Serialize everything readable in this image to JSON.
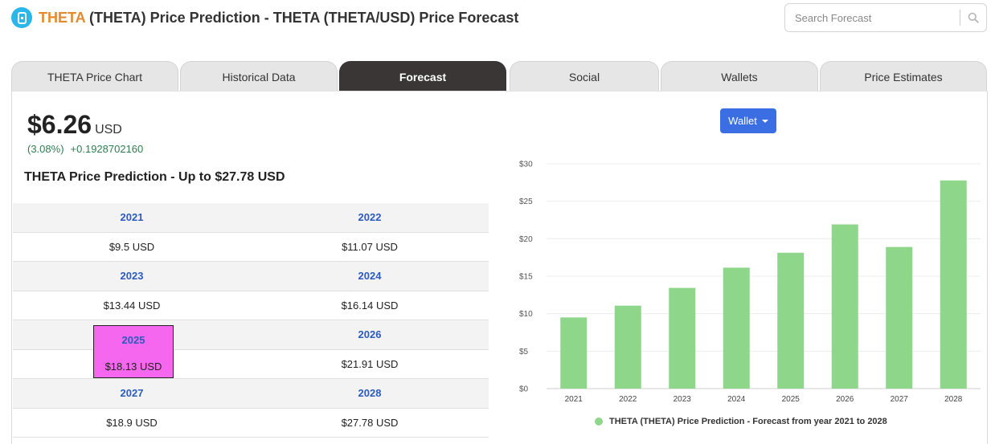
{
  "header": {
    "brand": "THETA",
    "title_rest": " (THETA) Price Prediction - THETA (THETA/USD) Price Forecast",
    "logo_icon": "theta-logo-icon"
  },
  "search": {
    "placeholder": "Search Forecast",
    "icon": "search-icon"
  },
  "tabs": [
    {
      "label": "THETA Price Chart",
      "active": false
    },
    {
      "label": "Historical Data",
      "active": false
    },
    {
      "label": "Forecast",
      "active": true
    },
    {
      "label": "Social",
      "active": false
    },
    {
      "label": "Wallets",
      "active": false
    },
    {
      "label": "Price Estimates",
      "active": false
    }
  ],
  "price": {
    "value": "$6.26",
    "unit": "USD",
    "change_percent": "(3.08%)",
    "change_value": "+0.1928702160"
  },
  "prediction_title": "THETA Price Prediction - Up to $27.78 USD",
  "table": {
    "rows": [
      {
        "type": "year",
        "cells": [
          "2021",
          "2022"
        ]
      },
      {
        "type": "value",
        "cells": [
          "$9.5 USD",
          "$11.07 USD"
        ]
      },
      {
        "type": "year",
        "cells": [
          "2023",
          "2024"
        ]
      },
      {
        "type": "value",
        "cells": [
          "$13.44 USD",
          "$16.14 USD"
        ]
      },
      {
        "type": "year",
        "cells": [
          "2025",
          "2026"
        ]
      },
      {
        "type": "value",
        "cells": [
          "$18.13 USD",
          "$21.91 USD"
        ]
      },
      {
        "type": "year",
        "cells": [
          "2027",
          "2028"
        ]
      },
      {
        "type": "value",
        "cells": [
          "$18.9 USD",
          "$27.78 USD"
        ]
      }
    ]
  },
  "wallet_button": {
    "label": "Wallet"
  },
  "colors": {
    "brand": "#e38a2c",
    "active_tab": "#3a3635",
    "year_text": "#2c5bbd",
    "change_text": "#2e7d4f",
    "button": "#3b6ee3",
    "bar": "#8ed68a",
    "highlight": "#f567ef"
  },
  "chart_data": {
    "type": "bar",
    "categories": [
      "2021",
      "2022",
      "2023",
      "2024",
      "2025",
      "2026",
      "2027",
      "2028"
    ],
    "values": [
      9.5,
      11.07,
      13.44,
      16.14,
      18.13,
      21.91,
      18.9,
      27.78
    ],
    "ylim": [
      0,
      30
    ],
    "yticks": [
      0,
      5,
      10,
      15,
      20,
      25,
      30
    ],
    "ytick_labels": [
      "$0",
      "$5",
      "$10",
      "$15",
      "$20",
      "$25",
      "$30"
    ],
    "grid": true,
    "legend": "bottom",
    "series": [
      {
        "name": "THETA (THETA) Price Prediction - Forecast from year 2021 to 2028",
        "color": "#8ed68a"
      }
    ]
  }
}
